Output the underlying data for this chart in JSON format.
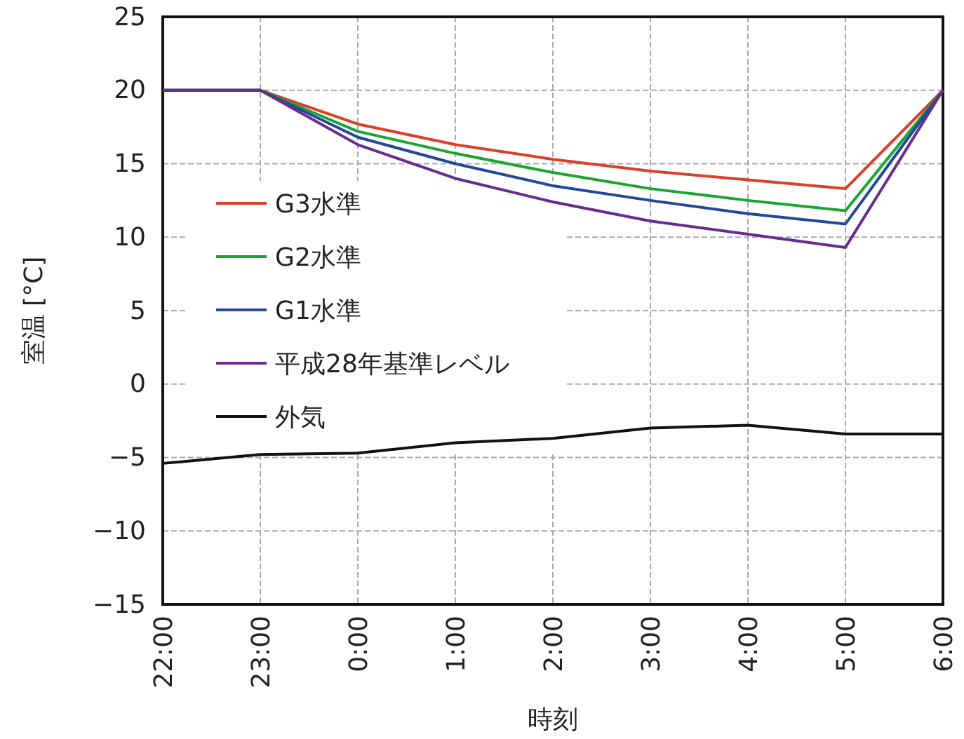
{
  "chart_data": {
    "type": "line",
    "xlabel": "時刻",
    "ylabel": "室温 [°C]",
    "categories": [
      "22:00",
      "23:00",
      "0:00",
      "1:00",
      "2:00",
      "3:00",
      "4:00",
      "5:00",
      "6:00"
    ],
    "series": [
      {
        "name": "G3水準",
        "color": "#d9402a",
        "values": [
          20,
          20,
          17.7,
          16.3,
          15.3,
          14.5,
          13.9,
          13.3,
          20
        ]
      },
      {
        "name": "G2水準",
        "color": "#1aa531",
        "values": [
          20,
          20,
          17.2,
          15.7,
          14.4,
          13.3,
          12.5,
          11.8,
          20
        ]
      },
      {
        "name": "G1水準",
        "color": "#23489a",
        "values": [
          20,
          20,
          16.8,
          15.0,
          13.5,
          12.5,
          11.6,
          10.9,
          20
        ]
      },
      {
        "name": "平成28年基準レベル",
        "color": "#6a2c8c",
        "values": [
          20,
          20,
          16.3,
          14.0,
          12.4,
          11.1,
          10.2,
          9.3,
          20
        ]
      },
      {
        "name": "外気",
        "color": "#111111",
        "values": [
          -5.4,
          -4.8,
          -4.7,
          -4.0,
          -3.7,
          -3.0,
          -2.8,
          -3.4,
          -3.4
        ]
      }
    ],
    "ylim": [
      -15,
      25
    ],
    "yticks": [
      -15,
      -10,
      -5,
      0,
      5,
      10,
      15,
      20,
      25
    ],
    "grid": true,
    "legend": "left",
    "line_style": "solid",
    "marker": "none"
  }
}
